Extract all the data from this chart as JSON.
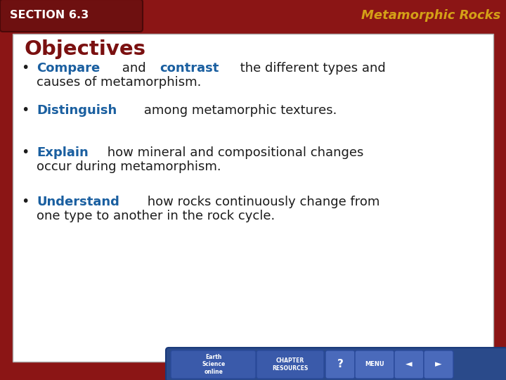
{
  "bg_color": "#8b1515",
  "slide_bg": "#ffffff",
  "title_text": "Metamorphic Rocks",
  "title_color": "#d4a017",
  "section_label": "SECTION 6.3",
  "objectives_title": "Objectives",
  "objectives_title_color": "#7a1010",
  "bullet_color": "#1c1c1c",
  "highlight_color": "#1a5fa0",
  "bullets": [
    [
      [
        "Compare",
        true
      ],
      [
        " and ",
        false
      ],
      [
        "contrast",
        true
      ],
      [
        " the different types and",
        false
      ],
      [
        "\ncauses of metamorphism.",
        false
      ]
    ],
    [
      [
        "Distinguish",
        true
      ],
      [
        " among metamorphic textures.",
        false
      ]
    ],
    [
      [
        "Explain",
        true
      ],
      [
        " how mineral and compositional changes",
        false
      ],
      [
        "\noccur during metamorphism.",
        false
      ]
    ],
    [
      [
        "Understand",
        true
      ],
      [
        " how rocks continuously change from",
        false
      ],
      [
        "\none type to another in the rock cycle.",
        false
      ]
    ]
  ]
}
